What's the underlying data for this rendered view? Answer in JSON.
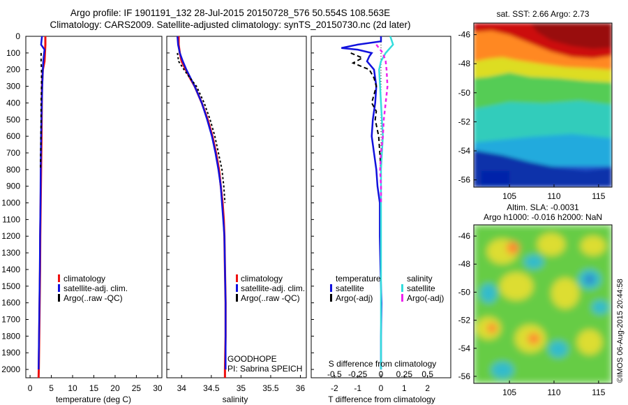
{
  "header": {
    "title_line1": "Argo profile: IF 1901191_132 28-Jul-2015 20150728_576 50.554S 108.563E",
    "title_line2": "Climatology: CARS2009. Satellite-adjusted climatology: synTS_20150730.nc (2d later)"
  },
  "depth_ticks": [
    "0",
    "100",
    "200",
    "300",
    "400",
    "500",
    "600",
    "700",
    "800",
    "900",
    "1000",
    "1100",
    "1200",
    "1300",
    "1400",
    "1500",
    "1600",
    "1700",
    "1800",
    "1900",
    "2000"
  ],
  "colors": {
    "climatology": "#ee1111",
    "satellite": "#1111dd",
    "argo": "#000000",
    "sal_satellite": "#33dddd",
    "sal_argo": "#ee22ee"
  },
  "chart_data": [
    {
      "type": "line",
      "panel": "temperature",
      "xlabel": "temperature (deg C)",
      "ylabel": "",
      "xlim": [
        -1,
        31
      ],
      "ylim": [
        2050,
        0
      ],
      "xticks": [
        "0",
        "5",
        "10",
        "15",
        "20",
        "25",
        "30"
      ],
      "legend": {
        "position": "right-middle",
        "items": [
          "climatology",
          "satellite-adj. clim.",
          "Argo(..raw -QC)"
        ]
      },
      "series": [
        {
          "name": "climatology",
          "depth": [
            0,
            50,
            100,
            150,
            200,
            300,
            400,
            600,
            800,
            1000,
            1200,
            1400,
            1600,
            1800,
            2000,
            2050
          ],
          "values": [
            3.6,
            3.6,
            3.5,
            3.4,
            3.0,
            2.8,
            2.75,
            2.7,
            2.6,
            2.5,
            2.4,
            2.35,
            2.25,
            2.15,
            2.05,
            2.0
          ]
        },
        {
          "name": "satellite-adj. clim.",
          "depth": [
            0,
            50,
            80,
            100,
            150,
            200,
            300,
            400,
            600,
            800,
            1000,
            1200,
            1400,
            1600,
            1800,
            2000
          ],
          "values": [
            2.8,
            2.6,
            3.4,
            3.3,
            3.1,
            3.0,
            2.85,
            2.75,
            2.6,
            2.5,
            2.45,
            2.35,
            2.3,
            2.2,
            2.1,
            2.0
          ]
        },
        {
          "name": "Argo(..raw -QC)",
          "depth": [
            100,
            150,
            200,
            300,
            400,
            500,
            600,
            700,
            800
          ],
          "values": [
            2.6,
            2.6,
            2.7,
            2.7,
            2.6,
            2.6,
            2.55,
            2.5,
            2.45
          ]
        }
      ]
    },
    {
      "type": "line",
      "panel": "salinity",
      "xlabel": "salinity",
      "ylabel": "",
      "xlim": [
        33.75,
        36.1
      ],
      "ylim": [
        2050,
        0
      ],
      "xticks": [
        "34",
        "34.5",
        "35",
        "35.5",
        "36"
      ],
      "annotation_line1": "GOODHOPE",
      "annotation_line2": "PI: Sabrina SPEICH",
      "legend": {
        "position": "right-middle",
        "items": [
          "climatology",
          "satellite-adj. clim.",
          "Argo(..raw -QC)"
        ]
      },
      "series": [
        {
          "name": "climatology",
          "depth": [
            0,
            50,
            100,
            150,
            200,
            250,
            300,
            400,
            500,
            600,
            700,
            800,
            900,
            1000,
            1100,
            1200,
            1400,
            1600,
            1800,
            2000,
            2050
          ],
          "values": [
            33.95,
            33.95,
            33.97,
            34.0,
            34.07,
            34.14,
            34.22,
            34.34,
            34.44,
            34.52,
            34.58,
            34.63,
            34.66,
            34.69,
            34.71,
            34.72,
            34.73,
            34.74,
            34.74,
            34.73,
            34.73
          ]
        },
        {
          "name": "satellite-adj. clim.",
          "depth": [
            0,
            50,
            100,
            150,
            200,
            250,
            300,
            400,
            500,
            600,
            700,
            800,
            900,
            1000,
            1100,
            1200,
            1400,
            1600,
            1800,
            2000
          ],
          "values": [
            33.93,
            33.94,
            33.97,
            34.02,
            34.08,
            34.15,
            34.22,
            34.34,
            34.43,
            34.51,
            34.57,
            34.62,
            34.66,
            34.68,
            34.7,
            34.72,
            34.73,
            34.74,
            34.74,
            34.74
          ]
        },
        {
          "name": "Argo(..raw -QC)",
          "depth": [
            100,
            150,
            200,
            250,
            300,
            400,
            500,
            600,
            700,
            800,
            900,
            1000
          ],
          "values": [
            33.93,
            33.95,
            34.04,
            34.14,
            34.25,
            34.38,
            34.48,
            34.56,
            34.62,
            34.68,
            34.71,
            34.73
          ]
        }
      ]
    },
    {
      "type": "line",
      "panel": "difference",
      "xlabel": "T difference from climatology",
      "xlabel_top": "S difference from climatology",
      "xlim": [
        -3,
        3
      ],
      "ylim": [
        2050,
        0
      ],
      "xticks": [
        "-2",
        "-1",
        "0",
        "1",
        "2"
      ],
      "xticks_s": [
        "-0.5",
        "-0.25",
        "0",
        "0.25",
        "0.5"
      ],
      "legend": {
        "position": "bottom",
        "header_t": "temperature",
        "header_s": "salinity",
        "items": [
          "satellite",
          "Argo(-adj)",
          "satellite",
          "Argo(-adj)"
        ]
      },
      "series": [
        {
          "name": "satellite",
          "group": "temperature",
          "depth": [
            0,
            30,
            50,
            70,
            80,
            100,
            120,
            150,
            200,
            300,
            400,
            500,
            600,
            700,
            800,
            900,
            1000,
            1200,
            1400,
            1600,
            1800,
            2000
          ],
          "values": [
            0,
            0,
            -1.0,
            -1.7,
            -1.0,
            -0.4,
            -0.5,
            -0.6,
            -0.3,
            -0.2,
            -0.25,
            -0.35,
            -0.4,
            -0.3,
            -0.2,
            -0.15,
            -0.05,
            -0.05,
            -0.02,
            0.02,
            0.0,
            0.0
          ]
        },
        {
          "name": "Argo(-adj)",
          "group": "temperature",
          "depth": [
            100,
            130,
            160,
            200,
            250,
            300,
            350,
            400,
            450,
            500,
            600,
            700,
            800
          ],
          "values": [
            -1.3,
            -0.8,
            -1.2,
            -0.5,
            -0.3,
            -0.2,
            -0.3,
            -0.4,
            -0.2,
            -0.25,
            -0.1,
            -0.05,
            0.0
          ]
        },
        {
          "name": "satellite",
          "group": "salinity",
          "depth": [
            0,
            50,
            100,
            150,
            200,
            300,
            400,
            500,
            600,
            700,
            800,
            900,
            1000,
            1200,
            1400,
            1600,
            1800,
            2000
          ],
          "values": [
            0.1,
            0.13,
            0.05,
            0.0,
            -0.02,
            -0.01,
            0.0,
            0.01,
            0.02,
            0.01,
            0.0,
            0.0,
            0.0,
            0.0,
            0.0,
            0.0,
            0.0,
            0.0
          ]
        },
        {
          "name": "Argo(-adj)",
          "group": "salinity",
          "depth": [
            50,
            100,
            150,
            200,
            300,
            400,
            500,
            600,
            700,
            800,
            900,
            1000
          ],
          "values": [
            -0.05,
            0.02,
            0.05,
            0.06,
            0.07,
            0.05,
            0.03,
            0.02,
            0.0,
            -0.01,
            0.0,
            0.0
          ]
        }
      ]
    },
    {
      "type": "heatmap",
      "panel": "sst-map",
      "title": "sat. SST: 2.66 Argo: 2.73",
      "xticks": [
        "105",
        "110",
        "115"
      ],
      "yticks": [
        "-46",
        "-48",
        "-50",
        "-52",
        "-54",
        "-56"
      ]
    },
    {
      "type": "heatmap",
      "panel": "sla-map",
      "title_line1": "Altim. SLA: -0.0031",
      "title_line2": "Argo h1000: -0.016 h2000: NaN",
      "xticks": [
        "105",
        "110",
        "115"
      ],
      "yticks": [
        "-46",
        "-48",
        "-50",
        "-52",
        "-54",
        "-56"
      ],
      "watermark": "©IMOS 06-Aug-2015 20:44:58"
    }
  ]
}
